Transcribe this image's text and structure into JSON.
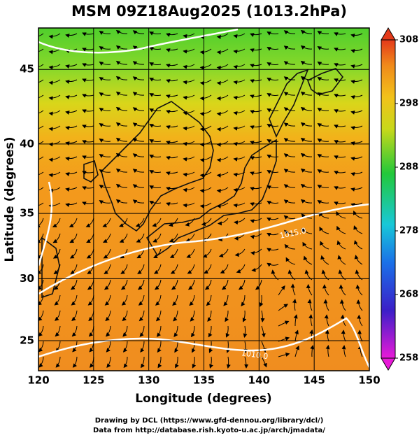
{
  "title": "MSM 09Z18Aug2025 (1013.2hPa)",
  "map": {
    "xlabel": "Longitude (degrees)",
    "ylabel": "Latitude  (degrees)",
    "xlim": [
      120,
      150
    ],
    "ylim": [
      22.5,
      47.6
    ],
    "xticks": [
      120,
      125,
      130,
      135,
      140,
      145,
      150
    ],
    "yticks": [
      25,
      30,
      35,
      40,
      45
    ],
    "contour_labels": [
      "1015.0",
      "1010.0"
    ]
  },
  "colorbar": {
    "lim": [
      258,
      308
    ],
    "ticks": [
      258,
      268,
      278,
      288,
      298,
      308
    ]
  },
  "credits": [
    "Drawing by DCL (https://www.gfd-dennou.org/library/dcl/)",
    "Data from http://database.rish.kyoto-u.ac.jp/arch/jmadata/"
  ]
}
